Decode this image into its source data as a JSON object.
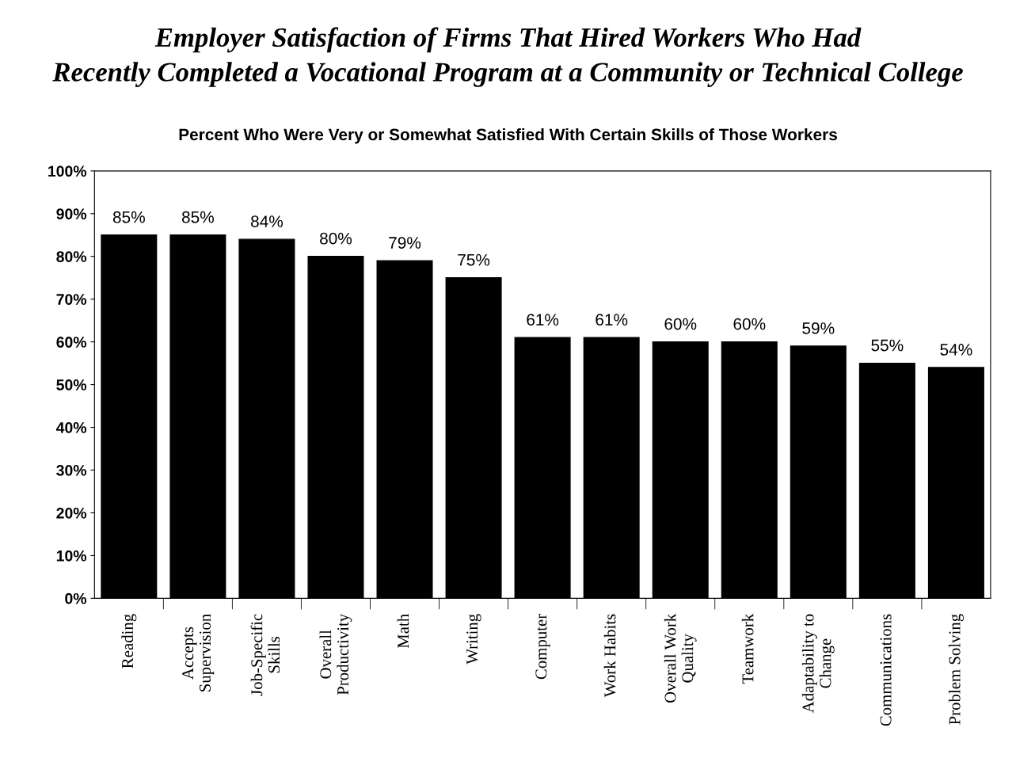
{
  "chart_data": {
    "type": "bar",
    "title": "Employer Satisfaction of Firms That Hired Workers Who Had\nRecently Completed a Vocational Program at a Community or Technical College",
    "subtitle": "Percent Who Were Very or Somewhat Satisfied With Certain Skills of Those Workers",
    "categories": [
      "Reading",
      "Accepts\nSupervision",
      "Job-Specific\nSkills",
      "Overall\nProductivity",
      "Math",
      "Writing",
      "Computer",
      "Work Habits",
      "Overall Work\nQuality",
      "Teamwork",
      "Adaptability to\nChange",
      "Communications",
      "Problem Solving"
    ],
    "values": [
      85,
      85,
      84,
      80,
      79,
      75,
      61,
      61,
      60,
      60,
      59,
      55,
      54
    ],
    "value_labels": [
      "85%",
      "85%",
      "84%",
      "80%",
      "79%",
      "75%",
      "61%",
      "61%",
      "60%",
      "60%",
      "59%",
      "55%",
      "54%"
    ],
    "color": "#000000",
    "ylim": [
      0,
      100
    ],
    "yticks": [
      {
        "value": 0,
        "label": "0%"
      },
      {
        "value": 10,
        "label": "10%"
      },
      {
        "value": 20,
        "label": "20%"
      },
      {
        "value": 30,
        "label": "30%"
      },
      {
        "value": 40,
        "label": "40%"
      },
      {
        "value": 50,
        "label": "50%"
      },
      {
        "value": 60,
        "label": "60%"
      },
      {
        "value": 70,
        "label": "70%"
      },
      {
        "value": 80,
        "label": "80%"
      },
      {
        "value": 90,
        "label": "90%"
      },
      {
        "value": 100,
        "label": "100%"
      }
    ],
    "grid": false
  }
}
